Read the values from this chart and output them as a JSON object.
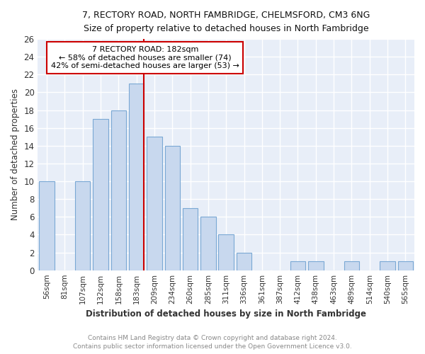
{
  "title1": "7, RECTORY ROAD, NORTH FAMBRIDGE, CHELMSFORD, CM3 6NG",
  "title2": "Size of property relative to detached houses in North Fambridge",
  "xlabel": "Distribution of detached houses by size in North Fambridge",
  "ylabel": "Number of detached properties",
  "categories": [
    "56sqm",
    "81sqm",
    "107sqm",
    "132sqm",
    "158sqm",
    "183sqm",
    "209sqm",
    "234sqm",
    "260sqm",
    "285sqm",
    "311sqm",
    "336sqm",
    "361sqm",
    "387sqm",
    "412sqm",
    "438sqm",
    "463sqm",
    "489sqm",
    "514sqm",
    "540sqm",
    "565sqm"
  ],
  "values": [
    10,
    0,
    10,
    17,
    18,
    21,
    15,
    14,
    7,
    6,
    4,
    2,
    0,
    0,
    1,
    1,
    0,
    1,
    0,
    1,
    1
  ],
  "bar_color": "#c8d8ee",
  "bar_edge_color": "#7aa8d4",
  "vline_color": "#cc0000",
  "annotation_title": "7 RECTORY ROAD: 182sqm",
  "annotation_line1": "← 58% of detached houses are smaller (74)",
  "annotation_line2": "42% of semi-detached houses are larger (53) →",
  "annotation_box_color": "#ffffff",
  "annotation_box_edge": "#cc0000",
  "ylim": [
    0,
    26
  ],
  "yticks": [
    0,
    2,
    4,
    6,
    8,
    10,
    12,
    14,
    16,
    18,
    20,
    22,
    24,
    26
  ],
  "footer1": "Contains HM Land Registry data © Crown copyright and database right 2024.",
  "footer2": "Contains public sector information licensed under the Open Government Licence v3.0.",
  "bg_color": "#e8eef8",
  "grid_color": "#ffffff",
  "fig_bg": "#ffffff"
}
